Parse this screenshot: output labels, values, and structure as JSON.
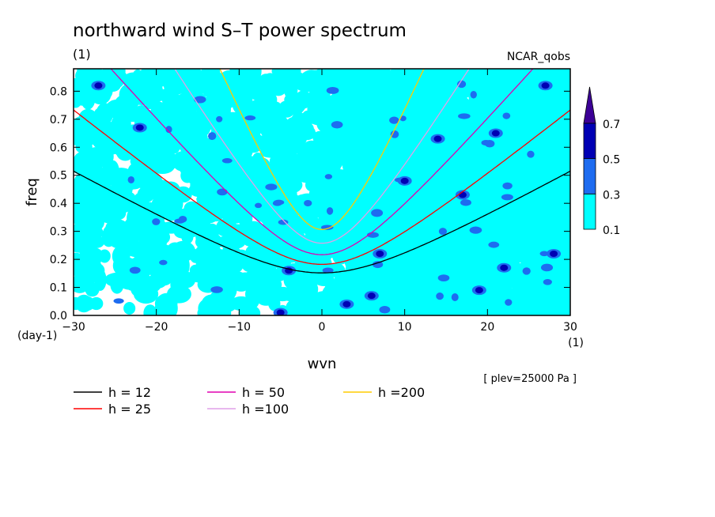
{
  "chart_data": {
    "type": "heatmap",
    "title": "northward wind S–T power spectrum",
    "subtitle": "(1)",
    "source_label": "NCAR_qobs",
    "xlabel": "wvn",
    "ylabel": "freq",
    "x_unit_label": "(1)",
    "y_unit_label": "(day-1)",
    "level_note": "[ plev=25000 Pa ]",
    "xlim": [
      -30,
      30
    ],
    "ylim": [
      0,
      0.88
    ],
    "x_ticks": [
      "-30",
      "-20",
      "-10",
      "0",
      "10",
      "20",
      "30"
    ],
    "y_ticks": [
      "0.0",
      "0.1",
      "0.2",
      "0.3",
      "0.4",
      "0.5",
      "0.6",
      "0.7",
      "0.8"
    ],
    "grid": false,
    "legend_position": "bottom",
    "colorbar": {
      "levels": [
        0.1,
        0.3,
        0.5,
        0.7
      ],
      "labels": [
        "0.1",
        "0.3",
        "0.5",
        "0.7"
      ],
      "colors": [
        "#00ffff",
        "#1e6cf0",
        "#0000b4",
        "#3c0096"
      ],
      "extend": "max"
    },
    "series": [
      {
        "name": "h = 12",
        "equivalent_depth": 12,
        "color": "#000000"
      },
      {
        "name": "h = 25",
        "equivalent_depth": 25,
        "color": "#ff0000"
      },
      {
        "name": "h = 50",
        "equivalent_depth": 50,
        "color": "#e000b0"
      },
      {
        "name": "h =100",
        "equivalent_depth": 100,
        "color": "#e0a0e8"
      },
      {
        "name": "h =200",
        "equivalent_depth": 200,
        "color": "#ffcc00"
      }
    ],
    "spectrum_peaks": [
      {
        "x": -4,
        "y": 0.16,
        "value": 0.5
      },
      {
        "x": -5,
        "y": 0.01,
        "value": 0.5
      },
      {
        "x": 3,
        "y": 0.04,
        "value": 0.5
      },
      {
        "x": 6,
        "y": 0.07,
        "value": 0.5
      },
      {
        "x": 7,
        "y": 0.22,
        "value": 0.5
      },
      {
        "x": 14,
        "y": 0.63,
        "value": 0.5
      },
      {
        "x": 17,
        "y": 0.43,
        "value": 0.5
      },
      {
        "x": 21,
        "y": 0.65,
        "value": 0.5
      },
      {
        "x": 27,
        "y": 0.82,
        "value": 0.5
      },
      {
        "x": -27,
        "y": 0.82,
        "value": 0.5
      },
      {
        "x": -22,
        "y": 0.67,
        "value": 0.5
      },
      {
        "x": 10,
        "y": 0.48,
        "value": 0.5
      },
      {
        "x": 22,
        "y": 0.17,
        "value": 0.5
      },
      {
        "x": 28,
        "y": 0.22,
        "value": 0.5
      },
      {
        "x": 19,
        "y": 0.09,
        "value": 0.5
      }
    ]
  },
  "legend": {
    "items": [
      "h = 12",
      "h = 25",
      "h = 50",
      "h =100",
      "h =200"
    ]
  }
}
